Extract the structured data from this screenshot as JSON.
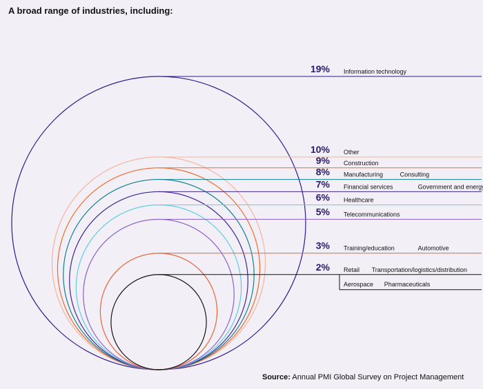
{
  "title": "A broad range of industries, including:",
  "source": {
    "label": "Source:",
    "text": "Annual PMI Global Survey on Project Management"
  },
  "colors": {
    "accent": "#2a1a6e",
    "background": "#f2eff7"
  },
  "chart_data": {
    "type": "nested-circles",
    "title": "A broad range of industries, including:",
    "groups": [
      {
        "value": 19,
        "label": "19%",
        "industries": [
          "Information technology"
        ],
        "color": "#2f1a8c"
      },
      {
        "value": 10,
        "label": "10%",
        "industries": [
          "Other"
        ],
        "color": "#f5b49a"
      },
      {
        "value": 9,
        "label": "9%",
        "industries": [
          "Construction"
        ],
        "color": "#ef6a2c"
      },
      {
        "value": 8,
        "label": "8%",
        "industries": [
          "Manufacturing",
          "Consulting"
        ],
        "color": "#0f7f8f"
      },
      {
        "value": 7,
        "label": "7%",
        "industries": [
          "Financial services",
          "Government and energy"
        ],
        "color": "#3c2691"
      },
      {
        "value": 6,
        "label": "6%",
        "industries": [
          "Healthcare"
        ],
        "color": "#5fcde0"
      },
      {
        "value": 5,
        "label": "5%",
        "industries": [
          "Telecommunications"
        ],
        "color": "#8a63c6"
      },
      {
        "value": 3,
        "label": "3%",
        "industries": [
          "Training/education",
          "Automotive"
        ],
        "color": "#e8643a"
      },
      {
        "value": 2,
        "label": "2%",
        "industries": [
          "Retail",
          "Transportation/logistics/distribution",
          "Aerospace",
          "Pharmaceuticals"
        ],
        "color": "#111111"
      }
    ]
  }
}
